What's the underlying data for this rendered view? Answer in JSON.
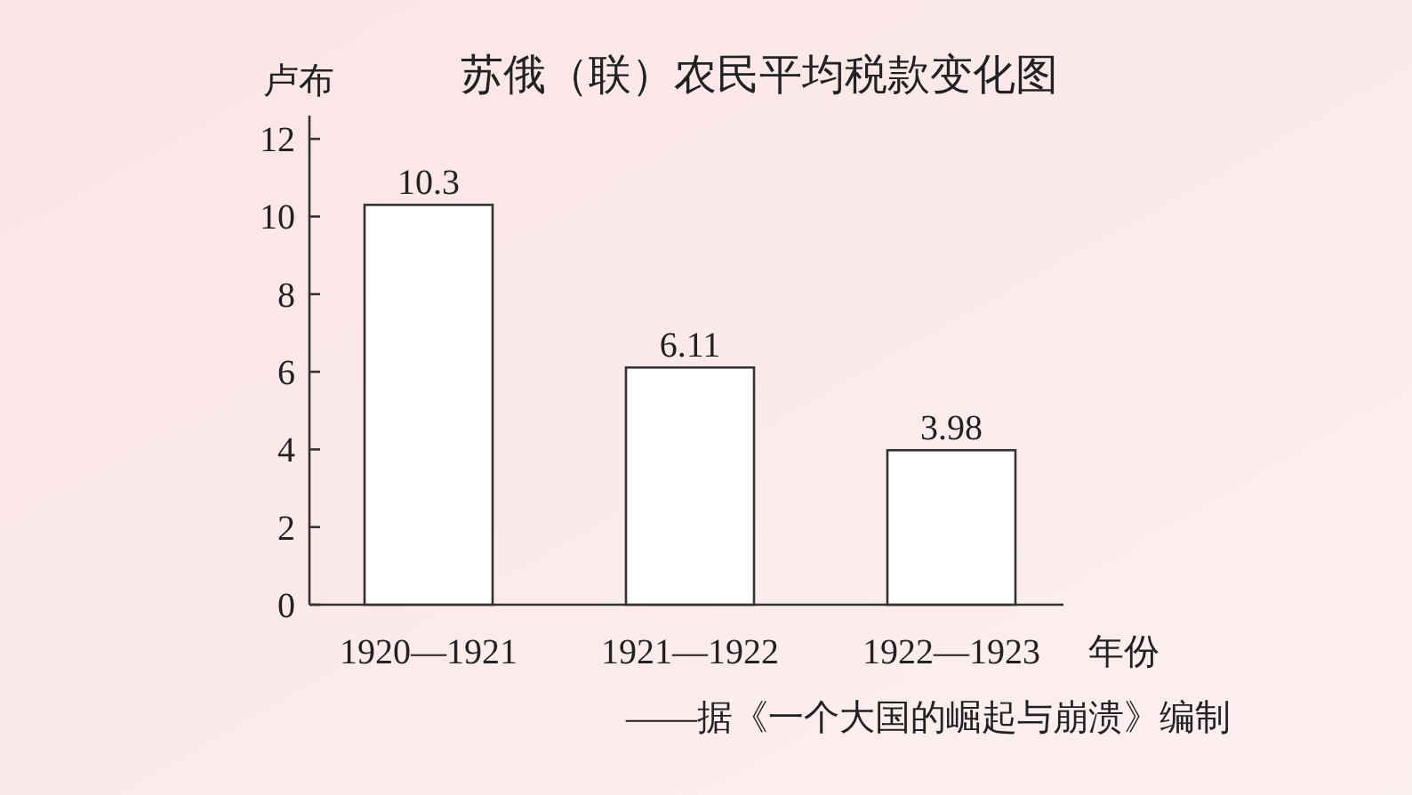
{
  "chart_data": {
    "type": "bar",
    "title": "苏俄（联）农民平均税款变化图",
    "ylabel": "卢布",
    "xlabel": "年份",
    "categories": [
      "1920—1921",
      "1921—1922",
      "1922—1923"
    ],
    "values": [
      10.3,
      6.11,
      3.98
    ],
    "color": "#ffffff",
    "data_labels": true,
    "ylim": [
      0,
      12.6
    ],
    "yticks": [
      0,
      2,
      4,
      6,
      8,
      10,
      12
    ],
    "annotations": [
      "——据《一个大国的崛起与崩溃》编制"
    ]
  }
}
